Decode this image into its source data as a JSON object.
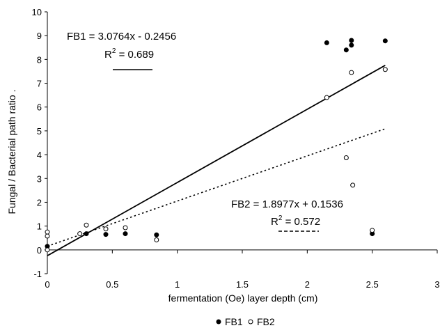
{
  "chart_data": {
    "type": "scatter",
    "xlabel": "fermentation (Oe) layer depth (cm)",
    "ylabel": "Fungal / Bacterial path ratio .",
    "xlim": [
      0,
      3
    ],
    "ylim": [
      -1,
      10
    ],
    "x_ticks": [
      "0",
      "0.5",
      "1",
      "1.5",
      "2",
      "2.5",
      "3"
    ],
    "y_ticks": [
      "-1",
      "0",
      "1",
      "2",
      "3",
      "4",
      "5",
      "6",
      "7",
      "8",
      "9",
      "10"
    ],
    "grid": false,
    "legend_position": "bottom-center",
    "series": [
      {
        "name": "FB1",
        "marker": "filled-circle",
        "color": "#000000",
        "points": [
          [
            0.0,
            0.15
          ],
          [
            0.3,
            0.68
          ],
          [
            0.45,
            0.65
          ],
          [
            0.6,
            0.68
          ],
          [
            0.84,
            0.63
          ],
          [
            2.15,
            8.7
          ],
          [
            2.3,
            8.4
          ],
          [
            2.34,
            8.8
          ],
          [
            2.34,
            8.6
          ],
          [
            2.5,
            0.68
          ],
          [
            2.6,
            8.78
          ]
        ],
        "trendline": {
          "equation": "FB1 = 3.0764x - 0.2456",
          "r2_prefix": "R",
          "r2_sup": "2",
          "r2_value": " = 0.689",
          "slope": 3.0764,
          "intercept": -0.2456,
          "x_range": [
            0,
            2.6
          ],
          "style": "solid"
        }
      },
      {
        "name": "FB2",
        "marker": "open-circle",
        "color": "#000000",
        "points": [
          [
            0.0,
            0.58
          ],
          [
            0.0,
            0.75
          ],
          [
            0.0,
            0.0
          ],
          [
            0.25,
            0.68
          ],
          [
            0.3,
            1.04
          ],
          [
            0.45,
            0.88
          ],
          [
            0.6,
            0.93
          ],
          [
            0.84,
            0.42
          ],
          [
            2.15,
            6.4
          ],
          [
            2.3,
            3.87
          ],
          [
            2.34,
            7.45
          ],
          [
            2.35,
            2.72
          ],
          [
            2.5,
            0.82
          ],
          [
            2.6,
            7.58
          ]
        ],
        "trendline": {
          "equation": "FB2 = 1.8977x + 0.1536",
          "r2_prefix": "R",
          "r2_sup": "2",
          "r2_value": " = 0.572",
          "slope": 1.8977,
          "intercept": 0.1536,
          "x_range": [
            0,
            2.6
          ],
          "style": "dotted"
        }
      }
    ]
  }
}
